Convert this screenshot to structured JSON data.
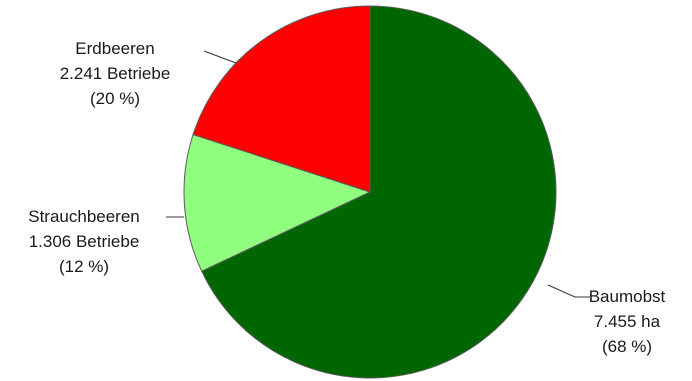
{
  "chart_data": {
    "type": "pie",
    "slices": [
      {
        "name": "Baumobst",
        "value": 68,
        "value_text": "7.455 ha",
        "percent_text": "(68 %)",
        "color": "#006600"
      },
      {
        "name": "Strauchbeeren",
        "value": 12,
        "value_text": "1.306 Betriebe",
        "percent_text": "(12 %)",
        "color": "#90ff80"
      },
      {
        "name": "Erdbeeren",
        "value": 20,
        "value_text": "2.241 Betriebe",
        "percent_text": "(20 %)",
        "color": "#ff0000"
      }
    ],
    "start_angle_deg": 0,
    "direction": "clockwise",
    "legend": "none"
  }
}
